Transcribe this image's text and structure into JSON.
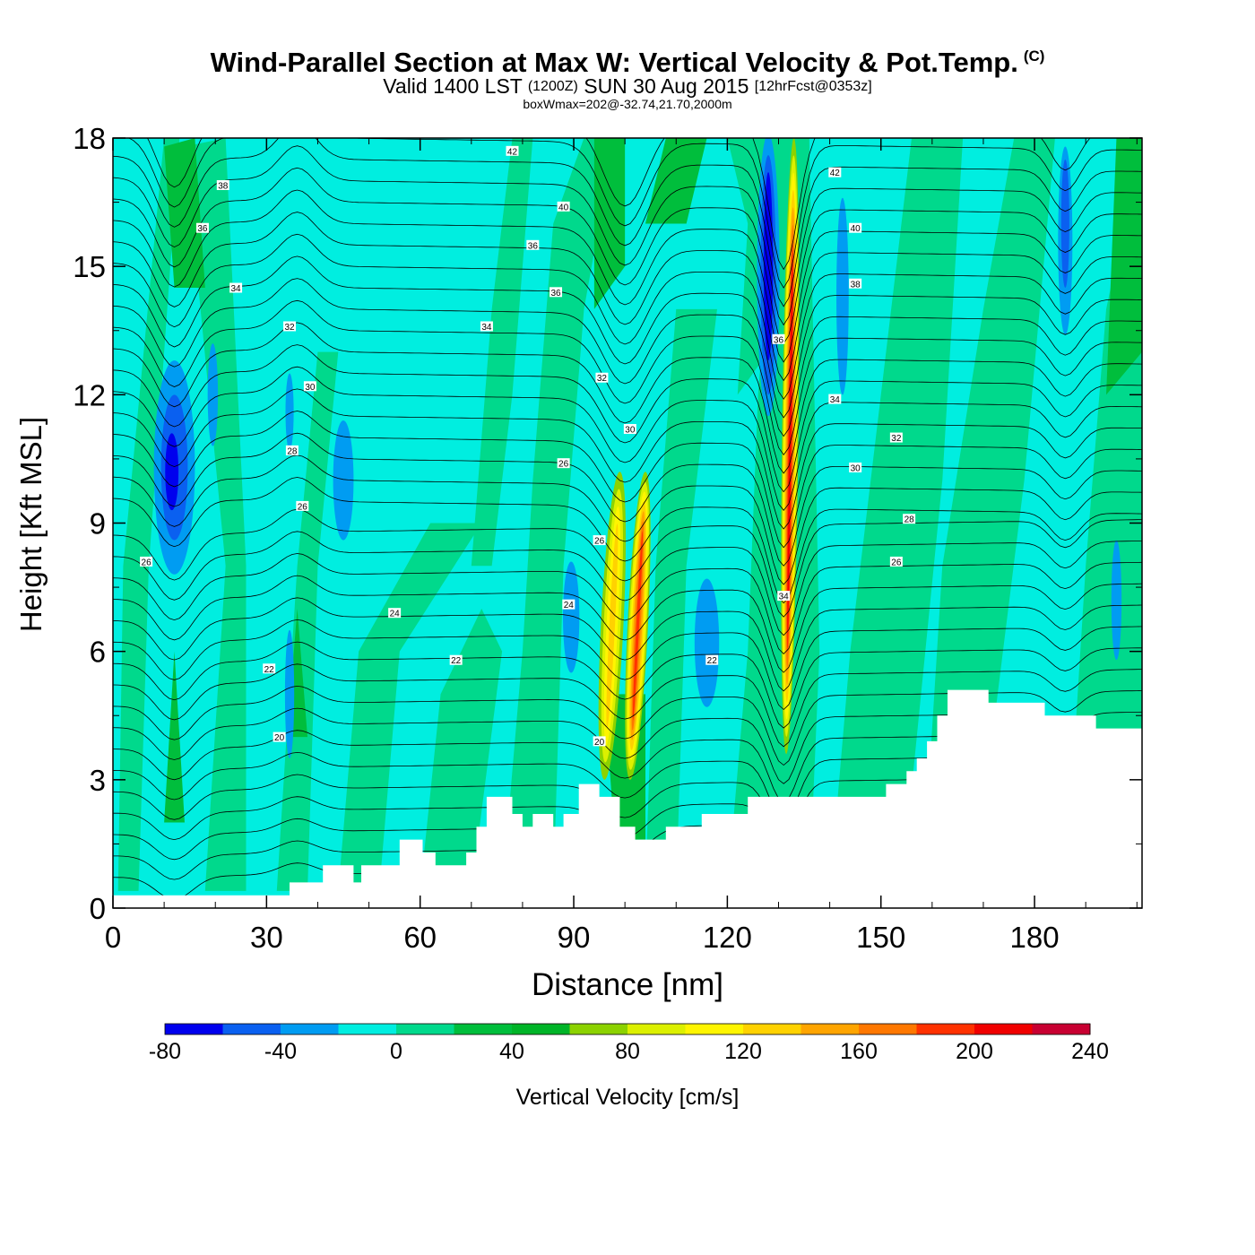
{
  "title": {
    "main": "Wind-Parallel Section at Max W: Vertical Velocity & Pot.Temp.",
    "copyright": "(C)",
    "valid_prefix": "Valid 1400 LST",
    "zulu": "(1200Z)",
    "valid_date": "SUN 30 Aug 2015",
    "forecast": "[12hrFcst@0353z]",
    "subtitle": "boxWmax=202@-32.74,21.70,2000m"
  },
  "colors": {
    "background_field": "#00EEE0",
    "band_light_green": "#00D98C",
    "band_mid_green": "#00BE3C",
    "strong_down": "#0000EE",
    "mid_down": "#0A60F0",
    "weak_down": "#009CF2",
    "terrain": "#FFFFFF",
    "contour": "#000000"
  },
  "chart_data": {
    "type": "heatmap",
    "xlabel": "Distance [nm]",
    "ylabel": "Height [Kft MSL]",
    "xlim": [
      0,
      201
    ],
    "ylim": [
      0,
      18
    ],
    "x_ticks": [
      0,
      30,
      60,
      90,
      120,
      150,
      180
    ],
    "y_ticks": [
      0,
      3,
      6,
      9,
      12,
      15,
      18
    ],
    "colorbar": {
      "label": "Vertical Velocity [cm/s]",
      "tick_labels": [
        -80,
        -40,
        0,
        40,
        80,
        120,
        160,
        200,
        240
      ],
      "bins": [
        {
          "from": -80,
          "to": -60,
          "color": "#0000EE"
        },
        {
          "from": -60,
          "to": -40,
          "color": "#0A60F0"
        },
        {
          "from": -40,
          "to": -20,
          "color": "#009CF2"
        },
        {
          "from": -20,
          "to": 0,
          "color": "#00EEE0"
        },
        {
          "from": 0,
          "to": 20,
          "color": "#00D98C"
        },
        {
          "from": 20,
          "to": 40,
          "color": "#00BE3C"
        },
        {
          "from": 40,
          "to": 60,
          "color": "#00B428"
        },
        {
          "from": 60,
          "to": 80,
          "color": "#8CD200"
        },
        {
          "from": 80,
          "to": 100,
          "color": "#DCF000"
        },
        {
          "from": 100,
          "to": 120,
          "color": "#FFF500"
        },
        {
          "from": 120,
          "to": 140,
          "color": "#FFD200"
        },
        {
          "from": 140,
          "to": 160,
          "color": "#FFA500"
        },
        {
          "from": 160,
          "to": 180,
          "color": "#FF7800"
        },
        {
          "from": 180,
          "to": 200,
          "color": "#FF3200"
        },
        {
          "from": 200,
          "to": 220,
          "color": "#F00000"
        },
        {
          "from": 220,
          "to": 240,
          "color": "#C80032"
        }
      ]
    },
    "terrain_profile": [
      {
        "x": 0,
        "z": 0.3
      },
      {
        "x": 34.5,
        "z": 0.3
      },
      {
        "x": 34.5,
        "z": 0.6
      },
      {
        "x": 41,
        "z": 0.6
      },
      {
        "x": 41,
        "z": 1.0
      },
      {
        "x": 47,
        "z": 1.0
      },
      {
        "x": 47,
        "z": 0.6
      },
      {
        "x": 48.5,
        "z": 0.6
      },
      {
        "x": 48.5,
        "z": 1.0
      },
      {
        "x": 56,
        "z": 1.0
      },
      {
        "x": 56,
        "z": 1.6
      },
      {
        "x": 60.5,
        "z": 1.6
      },
      {
        "x": 60.5,
        "z": 1.3
      },
      {
        "x": 63,
        "z": 1.3
      },
      {
        "x": 63,
        "z": 1.0
      },
      {
        "x": 69,
        "z": 1.0
      },
      {
        "x": 69,
        "z": 1.3
      },
      {
        "x": 71,
        "z": 1.3
      },
      {
        "x": 71,
        "z": 1.9
      },
      {
        "x": 73,
        "z": 1.9
      },
      {
        "x": 73,
        "z": 2.6
      },
      {
        "x": 78,
        "z": 2.6
      },
      {
        "x": 78,
        "z": 2.2
      },
      {
        "x": 80,
        "z": 2.2
      },
      {
        "x": 80,
        "z": 1.9
      },
      {
        "x": 82,
        "z": 1.9
      },
      {
        "x": 82,
        "z": 2.2
      },
      {
        "x": 86,
        "z": 2.2
      },
      {
        "x": 86,
        "z": 1.9
      },
      {
        "x": 88,
        "z": 1.9
      },
      {
        "x": 88,
        "z": 2.2
      },
      {
        "x": 91,
        "z": 2.2
      },
      {
        "x": 91,
        "z": 2.9
      },
      {
        "x": 95,
        "z": 2.9
      },
      {
        "x": 95,
        "z": 2.6
      },
      {
        "x": 99,
        "z": 2.6
      },
      {
        "x": 99,
        "z": 1.9
      },
      {
        "x": 102,
        "z": 1.9
      },
      {
        "x": 102,
        "z": 1.6
      },
      {
        "x": 108,
        "z": 1.6
      },
      {
        "x": 108,
        "z": 1.9
      },
      {
        "x": 115,
        "z": 1.9
      },
      {
        "x": 115,
        "z": 2.2
      },
      {
        "x": 124,
        "z": 2.2
      },
      {
        "x": 124,
        "z": 2.6
      },
      {
        "x": 151,
        "z": 2.6
      },
      {
        "x": 151,
        "z": 2.9
      },
      {
        "x": 155,
        "z": 2.9
      },
      {
        "x": 155,
        "z": 3.2
      },
      {
        "x": 157,
        "z": 3.2
      },
      {
        "x": 157,
        "z": 3.5
      },
      {
        "x": 159,
        "z": 3.5
      },
      {
        "x": 159,
        "z": 3.9
      },
      {
        "x": 161,
        "z": 3.9
      },
      {
        "x": 161,
        "z": 4.5
      },
      {
        "x": 163,
        "z": 4.5
      },
      {
        "x": 163,
        "z": 5.1
      },
      {
        "x": 171,
        "z": 5.1
      },
      {
        "x": 171,
        "z": 4.8
      },
      {
        "x": 182,
        "z": 4.8
      },
      {
        "x": 182,
        "z": 4.5
      },
      {
        "x": 192,
        "z": 4.5
      },
      {
        "x": 192,
        "z": 4.2
      },
      {
        "x": 201,
        "z": 4.2
      }
    ],
    "updraft_cores": [
      {
        "x": 101,
        "z_bottom": 3.0,
        "z_top": 10.5,
        "max_w": 180
      },
      {
        "x": 132,
        "z_bottom": 3.5,
        "z_top": 18.0,
        "max_w": 202
      }
    ],
    "downdraft_cores": [
      {
        "x": 12,
        "z_center": 10.3,
        "min_w": -70
      },
      {
        "x": 128,
        "z_center": 15.0,
        "min_w": -80
      },
      {
        "x": 186,
        "z_center": 15.5,
        "min_w": -70
      }
    ],
    "contour_labels": [
      {
        "text": "42",
        "x": 78,
        "z": 17.7
      },
      {
        "text": "38",
        "x": 21.5,
        "z": 16.9
      },
      {
        "text": "36",
        "x": 17.5,
        "z": 15.9
      },
      {
        "text": "40",
        "x": 88,
        "z": 16.4
      },
      {
        "text": "36",
        "x": 82,
        "z": 15.5
      },
      {
        "text": "34",
        "x": 24,
        "z": 14.5
      },
      {
        "text": "36",
        "x": 86.5,
        "z": 14.4
      },
      {
        "text": "32",
        "x": 34.5,
        "z": 13.6
      },
      {
        "text": "34",
        "x": 73,
        "z": 13.6
      },
      {
        "text": "30",
        "x": 38.5,
        "z": 12.2
      },
      {
        "text": "32",
        "x": 95.5,
        "z": 12.4
      },
      {
        "text": "28",
        "x": 35,
        "z": 10.7
      },
      {
        "text": "30",
        "x": 101,
        "z": 11.2
      },
      {
        "text": "26",
        "x": 88,
        "z": 10.4
      },
      {
        "text": "26",
        "x": 37,
        "z": 9.4
      },
      {
        "text": "26",
        "x": 6.5,
        "z": 8.1
      },
      {
        "text": "26",
        "x": 95,
        "z": 8.6
      },
      {
        "text": "24",
        "x": 55,
        "z": 6.9
      },
      {
        "text": "24",
        "x": 89,
        "z": 7.1
      },
      {
        "text": "22",
        "x": 30.5,
        "z": 5.6
      },
      {
        "text": "22",
        "x": 67,
        "z": 5.8
      },
      {
        "text": "22",
        "x": 117,
        "z": 5.8
      },
      {
        "text": "20",
        "x": 32.5,
        "z": 4.0
      },
      {
        "text": "20",
        "x": 95,
        "z": 3.9
      },
      {
        "text": "42",
        "x": 141,
        "z": 17.2
      },
      {
        "text": "40",
        "x": 145,
        "z": 15.9
      },
      {
        "text": "38",
        "x": 145,
        "z": 14.6
      },
      {
        "text": "36",
        "x": 130,
        "z": 13.3
      },
      {
        "text": "34",
        "x": 141,
        "z": 11.9
      },
      {
        "text": "32",
        "x": 153,
        "z": 11.0
      },
      {
        "text": "30",
        "x": 145,
        "z": 10.3
      },
      {
        "text": "28",
        "x": 155.5,
        "z": 9.1
      },
      {
        "text": "26",
        "x": 153,
        "z": 8.1
      },
      {
        "text": "34",
        "x": 131,
        "z": 7.3
      }
    ]
  }
}
